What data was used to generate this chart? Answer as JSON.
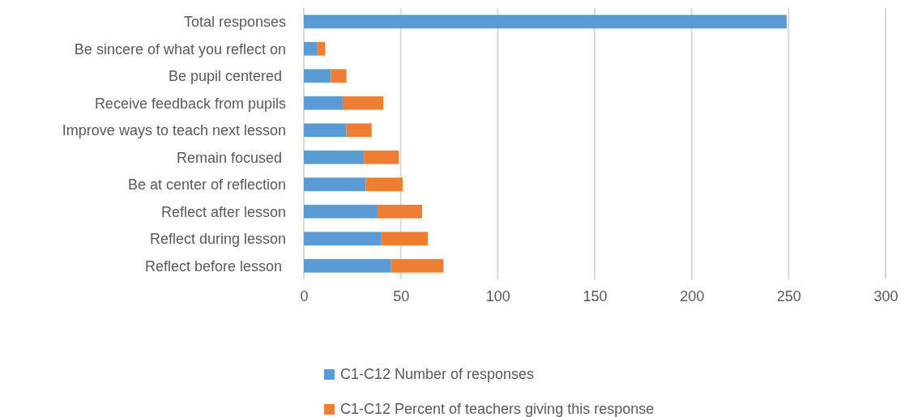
{
  "chart_data": {
    "type": "bar",
    "orientation": "horizontal",
    "stacked": true,
    "categories": [
      "Total responses",
      "Be sincere of what you reflect on",
      "Be pupil centered ",
      "Receive feedback from pupils",
      "Improve ways to teach next lesson",
      "Remain focused ",
      "Be at center of reflection",
      "Reflect after lesson",
      "Reflect during lesson",
      "Reflect before lesson "
    ],
    "series": [
      {
        "name": "C1-C12 Number of responses",
        "color": "#5b9bd5",
        "values": [
          249,
          7,
          14,
          20,
          22,
          31,
          32,
          38,
          40,
          45
        ]
      },
      {
        "name": "C1-C12 Percent of teachers giving this response",
        "color": "#ed7d31",
        "values": [
          null,
          4,
          8,
          21,
          13,
          18,
          19,
          23,
          24,
          27
        ]
      }
    ],
    "xlim": [
      0,
      300
    ],
    "xticks": [
      0,
      50,
      100,
      150,
      200,
      250,
      300
    ],
    "grid": "x",
    "legend": "bottom"
  }
}
